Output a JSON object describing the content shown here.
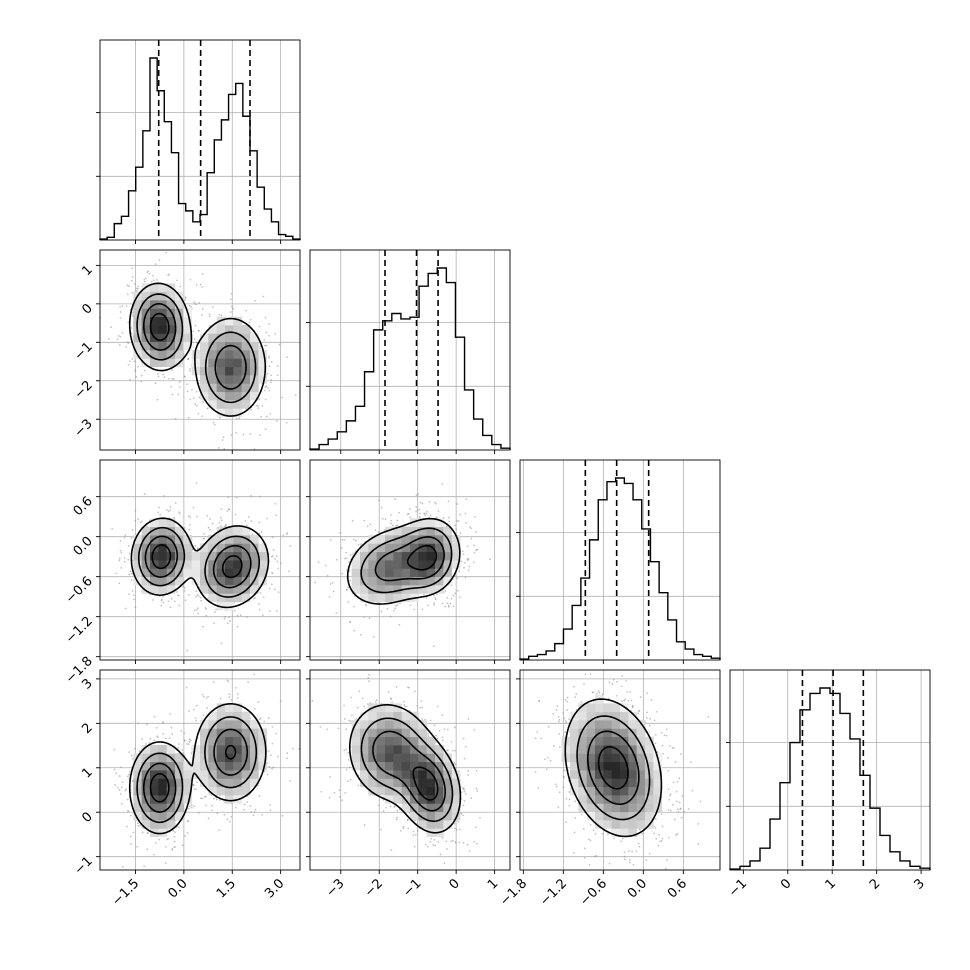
{
  "chart_data": {
    "type": "corner",
    "n_params": 4,
    "params": [
      {
        "range": [
          -2.6,
          3.6
        ],
        "ticks": [
          -1.5,
          0.0,
          1.5,
          3.0
        ],
        "tick_labels": [
          "−1.5",
          "0.0",
          "1.5",
          "3.0"
        ],
        "quantiles": [
          -0.78,
          0.52,
          2.05
        ],
        "hist": [
          0.005,
          0.015,
          0.09,
          0.13,
          0.27,
          0.4,
          0.6,
          1.0,
          0.82,
          0.65,
          0.48,
          0.2,
          0.16,
          0.1,
          0.14,
          0.37,
          0.55,
          0.66,
          0.8,
          0.86,
          0.68,
          0.49,
          0.29,
          0.17,
          0.1,
          0.03,
          0.02,
          0.005
        ]
      },
      {
        "range": [
          -3.8,
          1.4
        ],
        "ticks": [
          -3,
          -2,
          -1,
          0,
          1
        ],
        "tick_labels": [
          "−3",
          "−2",
          "−1",
          "0",
          "1"
        ],
        "quantiles": [
          -1.85,
          -1.03,
          -0.47
        ],
        "hist": [
          0.005,
          0.03,
          0.06,
          0.1,
          0.16,
          0.24,
          0.43,
          0.66,
          0.71,
          0.75,
          0.72,
          0.73,
          0.9,
          0.97,
          1.0,
          0.92,
          0.62,
          0.33,
          0.17,
          0.08,
          0.03,
          0.01
        ]
      },
      {
        "range": [
          -1.85,
          1.15
        ],
        "ticks": [
          -1.8,
          -1.2,
          -0.6,
          0.0,
          0.6
        ],
        "tick_labels": [
          "−1.8",
          "−1.2",
          "−0.6",
          "0.0",
          "0.6"
        ],
        "quantiles": [
          -0.87,
          -0.4,
          0.08
        ],
        "hist": [
          0.005,
          0.02,
          0.03,
          0.05,
          0.09,
          0.17,
          0.3,
          0.45,
          0.66,
          0.88,
          0.98,
          1.0,
          0.97,
          0.88,
          0.72,
          0.54,
          0.37,
          0.22,
          0.1,
          0.06,
          0.03,
          0.02,
          0.01
        ]
      },
      {
        "range": [
          -1.3,
          3.2
        ],
        "ticks": [
          -1,
          0,
          1,
          2,
          3
        ],
        "tick_labels": [
          "−1",
          "0",
          "1",
          "2",
          "3"
        ],
        "quantiles": [
          0.33,
          1.02,
          1.7
        ],
        "hist": [
          0.005,
          0.02,
          0.05,
          0.12,
          0.28,
          0.48,
          0.7,
          0.88,
          0.97,
          1.0,
          0.97,
          0.86,
          0.72,
          0.52,
          0.34,
          0.19,
          0.1,
          0.05,
          0.02,
          0.01
        ]
      }
    ],
    "blobs": {
      "1,0": [
        {
          "mx": -0.75,
          "my": -0.6,
          "sx": 0.45,
          "sy": 0.55,
          "rho": -0.05,
          "w": 1.0
        },
        {
          "mx": 1.45,
          "my": -1.65,
          "sx": 0.55,
          "sy": 0.65,
          "rho": 0.0,
          "w": 0.8
        }
      ],
      "2,0": [
        {
          "mx": -0.7,
          "my": -0.3,
          "sx": 0.45,
          "sy": 0.28,
          "rho": 0.05,
          "w": 1.0
        },
        {
          "mx": 1.5,
          "my": -0.45,
          "sx": 0.55,
          "sy": 0.3,
          "rho": 0.15,
          "w": 0.95
        }
      ],
      "3,0": [
        {
          "mx": -0.75,
          "my": 0.55,
          "sx": 0.45,
          "sy": 0.5,
          "rho": 0.0,
          "w": 1.0
        },
        {
          "mx": 1.45,
          "my": 1.35,
          "sx": 0.55,
          "sy": 0.55,
          "rho": 0.0,
          "w": 0.85
        }
      ],
      "2,1": [
        {
          "mx": -0.7,
          "my": -0.3,
          "sx": 0.4,
          "sy": 0.28,
          "rho": 0.1,
          "w": 1.0
        },
        {
          "mx": -1.7,
          "my": -0.45,
          "sx": 0.6,
          "sy": 0.3,
          "rho": 0.25,
          "w": 0.85
        }
      ],
      "3,1": [
        {
          "mx": -0.7,
          "my": 0.55,
          "sx": 0.4,
          "sy": 0.5,
          "rho": -0.2,
          "w": 1.0
        },
        {
          "mx": -1.7,
          "my": 1.35,
          "sx": 0.55,
          "sy": 0.55,
          "rho": -0.1,
          "w": 0.85
        }
      ],
      "3,2": [
        {
          "mx": -0.45,
          "my": 1.0,
          "sx": 0.35,
          "sy": 0.75,
          "rho": -0.25,
          "w": 1.0
        }
      ]
    },
    "contour_levels": [
      0.12,
      0.3,
      0.55,
      0.82
    ],
    "grid": true,
    "title": "",
    "xlabel": "",
    "ylabel": ""
  }
}
